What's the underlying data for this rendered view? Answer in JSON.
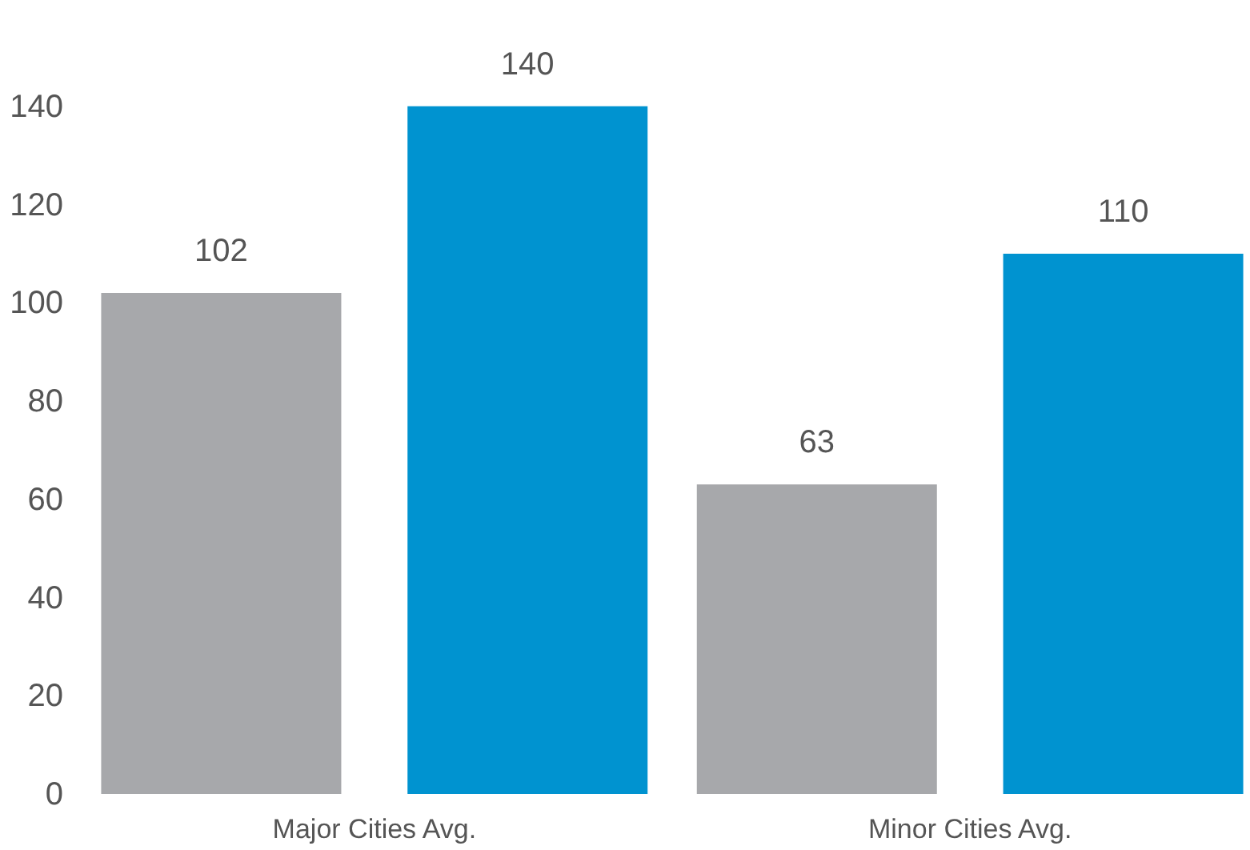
{
  "chart_data": {
    "type": "bar",
    "categories": [
      "Major Cities Avg.",
      "Minor Cities Avg."
    ],
    "series": [
      {
        "color": "#a7a8ab",
        "values": [
          102,
          63
        ]
      },
      {
        "color": "#0093d0",
        "values": [
          140,
          110
        ]
      }
    ],
    "ylim": [
      0,
      160
    ],
    "yticks": [
      0,
      20,
      40,
      60,
      80,
      100,
      120,
      140
    ],
    "grid": false,
    "legend": false,
    "data_labels": true
  }
}
